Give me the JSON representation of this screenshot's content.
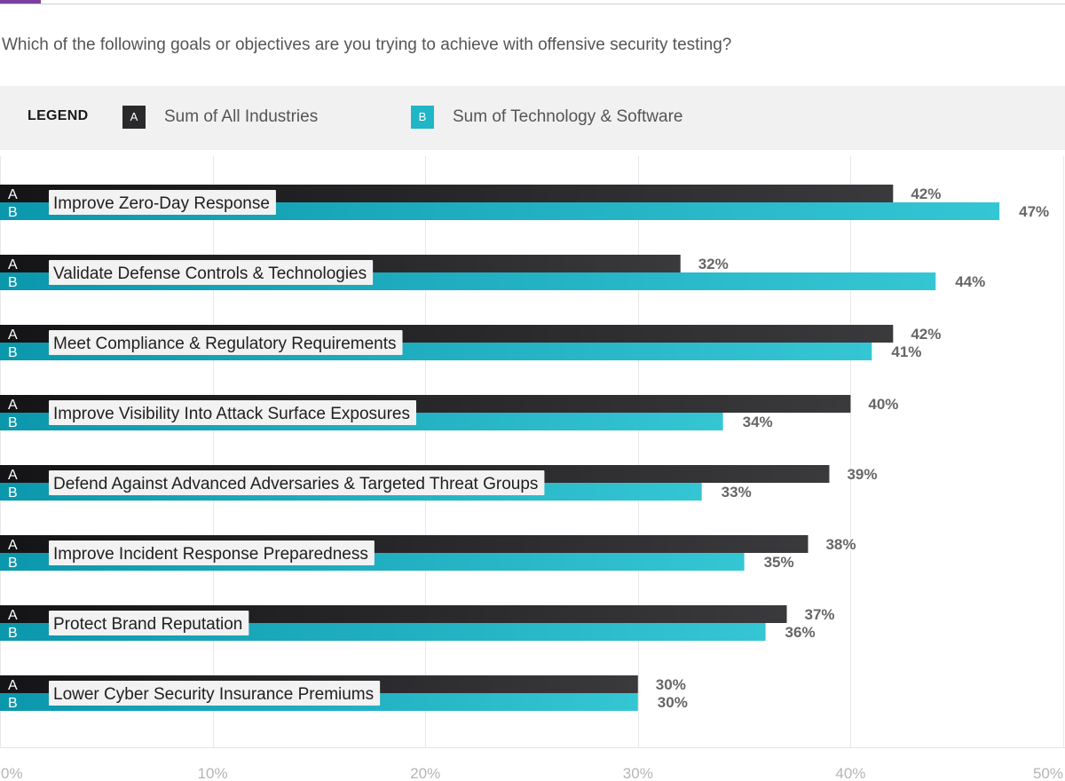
{
  "page": {
    "question": "Which of the following goals or objectives are you trying to achieve with offensive security testing?"
  },
  "legend": {
    "title": "LEGEND",
    "items": [
      {
        "key": "A",
        "label": "Sum of All Industries",
        "color": "#2a2a2c"
      },
      {
        "key": "B",
        "label": "Sum of Technology & Software",
        "color": "#1fb6c8"
      }
    ]
  },
  "chart_data": {
    "type": "bar",
    "orientation": "horizontal",
    "title": "Which of the following goals or objectives are you trying to achieve with offensive security testing?",
    "xlabel": "",
    "ylabel": "",
    "xlim": [
      0,
      50
    ],
    "xticks": [
      0,
      10,
      20,
      30,
      40,
      50
    ],
    "xtick_labels": [
      "0%",
      "10%",
      "20%",
      "30%",
      "40%",
      "50%"
    ],
    "grid": true,
    "legend_position": "top",
    "categories": [
      "Improve Zero-Day Response",
      "Validate Defense Controls & Technologies",
      "Meet Compliance & Regulatory Requirements",
      "Improve Visibility Into Attack Surface Exposures",
      "Defend Against Advanced Adversaries & Targeted Threat Groups",
      "Improve Incident Response Preparedness",
      "Protect Brand Reputation",
      "Lower Cyber Security Insurance Premiums"
    ],
    "series": [
      {
        "key": "A",
        "name": "Sum of All Industries",
        "values": [
          42,
          32,
          42,
          40,
          39,
          38,
          37,
          30
        ],
        "value_labels": [
          "42%",
          "32%",
          "42%",
          "40%",
          "39%",
          "38%",
          "37%",
          "30%"
        ]
      },
      {
        "key": "B",
        "name": "Sum of Technology & Software",
        "values": [
          47,
          44,
          41,
          34,
          33,
          35,
          36,
          30
        ],
        "value_labels": [
          "47%",
          "44%",
          "41%",
          "34%",
          "33%",
          "35%",
          "36%",
          "30%"
        ]
      }
    ]
  }
}
